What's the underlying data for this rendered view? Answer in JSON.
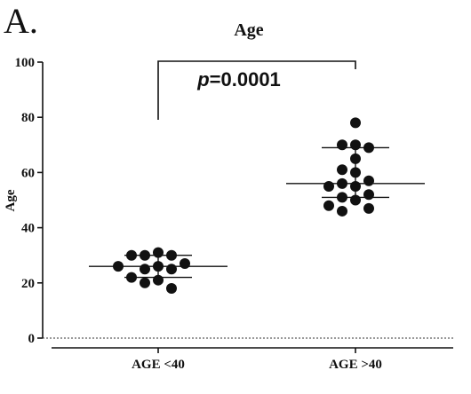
{
  "panel_label": "A.",
  "chart_data": {
    "type": "scatter",
    "title": "Age",
    "xlabel": "",
    "ylabel": "Age",
    "ylim": [
      0,
      100
    ],
    "yticks": [
      0,
      20,
      40,
      60,
      80,
      100
    ],
    "categories": [
      "AGE <40",
      "AGE >40"
    ],
    "groups": [
      {
        "category": "AGE <40",
        "values": [
          30,
          31,
          30,
          30,
          27,
          26,
          25,
          26,
          25,
          22,
          21,
          20,
          18
        ],
        "mean": 26,
        "sd_upper": 30,
        "sd_lower": 22
      },
      {
        "category": "AGE >40",
        "values": [
          78,
          70,
          70,
          69,
          65,
          61,
          60,
          57,
          56,
          55,
          55,
          52,
          51,
          50,
          48,
          47,
          46
        ],
        "mean": 56,
        "sd_upper": 69,
        "sd_lower": 51
      }
    ],
    "annotation": "p=0.0001",
    "reference_line": 0
  }
}
